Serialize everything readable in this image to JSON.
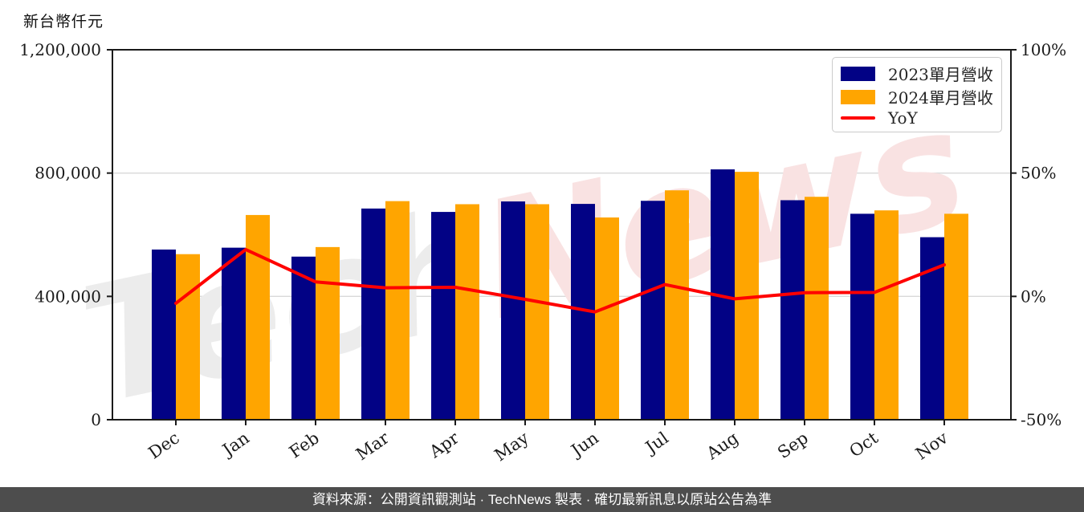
{
  "footer": {
    "text": "資料來源：公開資訊觀測站 · TechNews 製表 · 確切最新訊息以原站公告為準"
  },
  "watermark": {
    "text": "TechNews",
    "part1": "Tech",
    "part2": "News",
    "part1_color": "#ececec",
    "part2_color": "#f9e2e2"
  },
  "colors": {
    "bar_2023": "#020285",
    "bar_2024": "#FFA500",
    "yoy_line": "#FF0000",
    "grid": "#D9D9D9",
    "axis": "#1A1A1A",
    "tick_text": "#1A1A1A",
    "footer_bg": "#4D4D4D"
  },
  "chart_data": {
    "type": "bar",
    "title": "",
    "categories": [
      "Dec",
      "Jan",
      "Feb",
      "Mar",
      "Apr",
      "May",
      "Jun",
      "Jul",
      "Aug",
      "Sep",
      "Oct",
      "Nov"
    ],
    "series": [
      {
        "name": "2023單月營收",
        "type": "bar",
        "axis": "left",
        "color_key": "bar_2023",
        "values": [
          552000,
          558000,
          529000,
          685000,
          674000,
          708000,
          700000,
          710000,
          812000,
          712000,
          668000,
          592000
        ]
      },
      {
        "name": "2024單月營收",
        "type": "bar",
        "axis": "left",
        "color_key": "bar_2024",
        "values": [
          537000,
          664000,
          560000,
          709000,
          699000,
          699000,
          656000,
          744000,
          804000,
          723000,
          679000,
          668000
        ]
      },
      {
        "name": "YoY",
        "type": "line",
        "axis": "right",
        "color_key": "yoy_line",
        "values_pct": [
          -2.8,
          19.0,
          5.9,
          3.5,
          3.7,
          -1.2,
          -6.3,
          4.8,
          -1.0,
          1.5,
          1.6,
          12.8
        ]
      }
    ],
    "left_axis": {
      "label": "新台幣仟元",
      "range": [
        0,
        1200000
      ],
      "ticks": [
        0,
        400000,
        800000,
        1200000
      ],
      "tick_labels": [
        "0",
        "400,000",
        "800,000",
        "1,200,000"
      ]
    },
    "right_axis": {
      "range": [
        -50,
        100
      ],
      "ticks": [
        -50,
        0,
        50,
        100
      ],
      "tick_labels": [
        "-50%",
        "0%",
        "50%",
        "100%"
      ]
    },
    "grid": "horizontal",
    "legend_position": "top-right"
  }
}
